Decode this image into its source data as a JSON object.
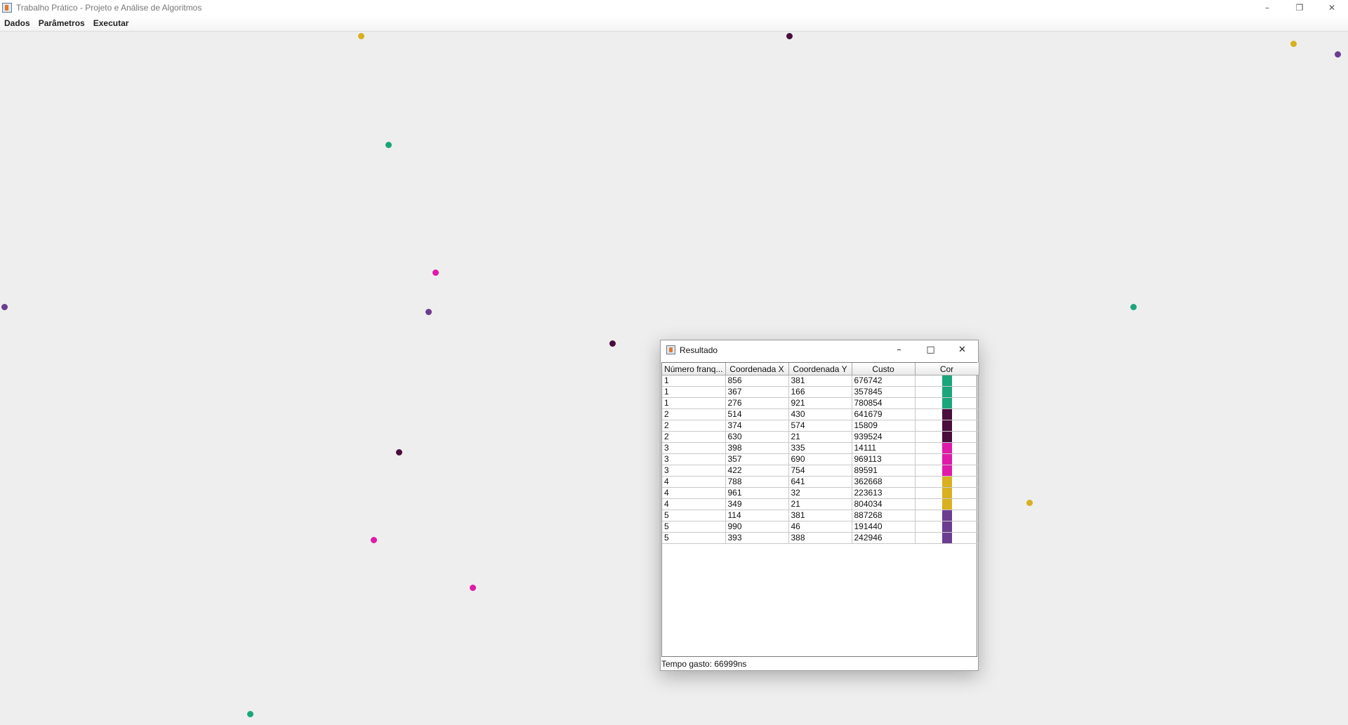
{
  "window": {
    "title": "Trabalho Prático - Projeto e Análise de Algoritmos",
    "controls": {
      "minimize": "–",
      "restore": "❐",
      "close": "✕"
    }
  },
  "menu": [
    "Dados",
    "Parâmetros",
    "Executar"
  ],
  "group_colors": {
    "1": "#1aa67a",
    "2": "#4a0e3c",
    "3": "#e01aa8",
    "4": "#d8b020",
    "5": "#6b3d8f"
  },
  "dialog": {
    "title": "Resultado",
    "controls": {
      "minimize": "–",
      "maximize": "□",
      "close": "✕"
    },
    "columns": [
      "Número franq...",
      "Coordenada X",
      "Coordenada Y",
      "Custo",
      "Cor"
    ],
    "rows": [
      [
        "1",
        "856",
        "381",
        "676742",
        "#1aa67a"
      ],
      [
        "1",
        "367",
        "166",
        "357845",
        "#1aa67a"
      ],
      [
        "1",
        "276",
        "921",
        "780854",
        "#1aa67a"
      ],
      [
        "2",
        "514",
        "430",
        "641679",
        "#4a0e3c"
      ],
      [
        "2",
        "374",
        "574",
        "15809",
        "#4a0e3c"
      ],
      [
        "2",
        "630",
        "21",
        "939524",
        "#4a0e3c"
      ],
      [
        "3",
        "398",
        "335",
        "14111",
        "#e01aa8"
      ],
      [
        "3",
        "357",
        "690",
        "969113",
        "#e01aa8"
      ],
      [
        "3",
        "422",
        "754",
        "89591",
        "#e01aa8"
      ],
      [
        "4",
        "788",
        "641",
        "362668",
        "#d8b020"
      ],
      [
        "4",
        "961",
        "32",
        "223613",
        "#d8b020"
      ],
      [
        "4",
        "349",
        "21",
        "804034",
        "#d8b020"
      ],
      [
        "5",
        "114",
        "381",
        "887268",
        "#6b3d8f"
      ],
      [
        "5",
        "990",
        "46",
        "191440",
        "#6b3d8f"
      ],
      [
        "5",
        "393",
        "388",
        "242946",
        "#6b3d8f"
      ]
    ],
    "status": "Tempo gasto: 66999ns"
  }
}
